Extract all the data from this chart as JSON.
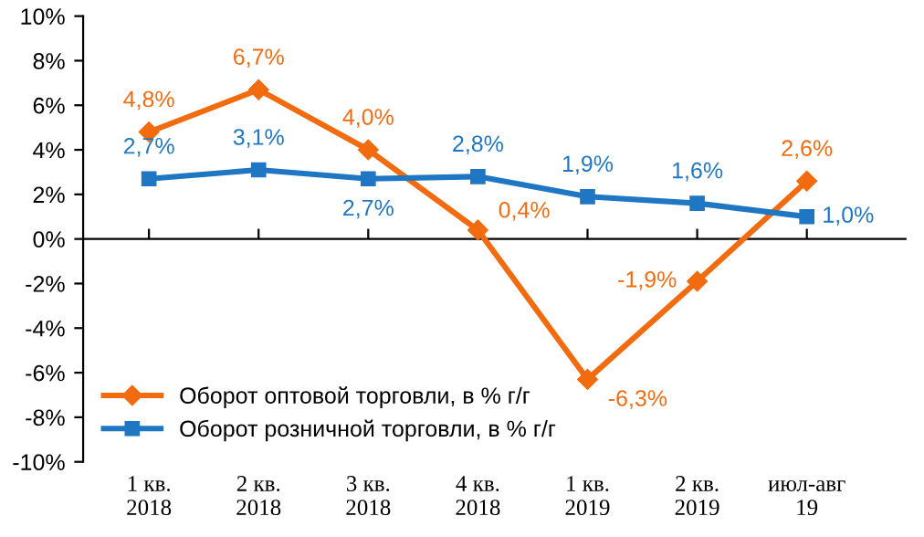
{
  "chart_data": {
    "type": "line",
    "categories": [
      "1 кв.\n2018",
      "2 кв.\n2018",
      "3 кв.\n2018",
      "4 кв.\n2018",
      "1 кв.\n2019",
      "2 кв.\n2019",
      "июл-авг\n19"
    ],
    "series": [
      {
        "name": "Оборот оптовой торговли, в % г/г",
        "color": "#f26b0f",
        "marker": "diamond",
        "values": [
          4.8,
          6.7,
          4.0,
          0.4,
          -6.3,
          -1.9,
          2.6
        ],
        "value_labels": [
          "4,8%",
          "6,7%",
          "4,0%",
          "0,4%",
          "-6,3%",
          "-1,9%",
          "2,6%"
        ]
      },
      {
        "name": "Оборот розничной торговли, в % г/г",
        "color": "#1f77c4",
        "marker": "square",
        "values": [
          2.7,
          3.1,
          2.7,
          2.8,
          1.9,
          1.6,
          1.0
        ],
        "value_labels": [
          "2,7%",
          "3,1%",
          "2,7%",
          "2,8%",
          "1,9%",
          "1,6%",
          "1,0%"
        ]
      }
    ],
    "ylim": [
      -10,
      10
    ],
    "yticks": [
      {
        "value": -10,
        "label": "-10%"
      },
      {
        "value": -8,
        "label": "-8%"
      },
      {
        "value": -6,
        "label": "-6%"
      },
      {
        "value": -4,
        "label": "-4%"
      },
      {
        "value": -2,
        "label": "-2%"
      },
      {
        "value": 0,
        "label": "0%"
      },
      {
        "value": 2,
        "label": "2%"
      },
      {
        "value": 4,
        "label": "4%"
      },
      {
        "value": 6,
        "label": "6%"
      },
      {
        "value": 8,
        "label": "8%"
      },
      {
        "value": 10,
        "label": "10%"
      }
    ],
    "legend": "bottom left"
  }
}
